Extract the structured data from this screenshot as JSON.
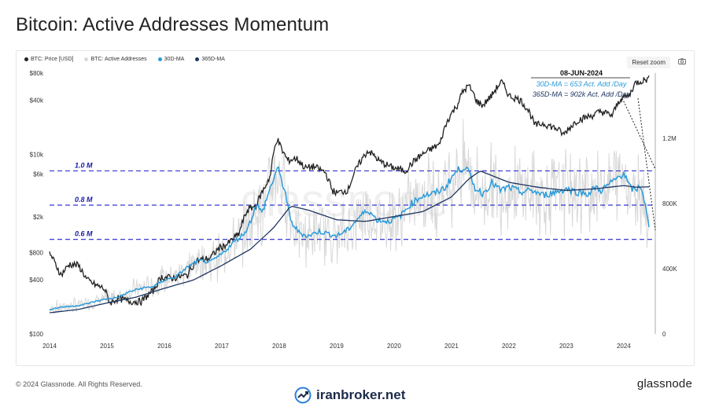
{
  "header": {
    "title": "Bitcoin: Active Addresses Momentum"
  },
  "toolbar": {
    "reset_zoom_label": "Reset zoom",
    "camera_icon": "camera-icon"
  },
  "footer": {
    "copyright": "© 2024 Glassnode. All Rights Reserved.",
    "brand": "glassnode",
    "watermark": "iranbroker.net"
  },
  "chart_data": {
    "type": "line",
    "title": "Bitcoin: Active Addresses Momentum",
    "legend_position": "top-left",
    "grid": false,
    "series": [
      {
        "name": "BTC: Price [USD]",
        "color": "#222222",
        "axis": "left",
        "x": [
          2014.0,
          2014.1,
          2014.2,
          2014.35,
          2014.5,
          2014.65,
          2014.8,
          2014.95,
          2015.05,
          2015.2,
          2015.4,
          2015.6,
          2015.8,
          2015.95,
          2016.15,
          2016.4,
          2016.55,
          2016.8,
          2016.95,
          2017.1,
          2017.3,
          2017.45,
          2017.6,
          2017.75,
          2017.85,
          2017.96,
          2018.05,
          2018.15,
          2018.3,
          2018.45,
          2018.6,
          2018.8,
          2018.92,
          2019.0,
          2019.2,
          2019.45,
          2019.55,
          2019.75,
          2019.95,
          2020.2,
          2020.4,
          2020.6,
          2020.8,
          2020.95,
          2021.1,
          2021.2,
          2021.3,
          2021.45,
          2021.55,
          2021.7,
          2021.87,
          2022.0,
          2022.2,
          2022.35,
          2022.45,
          2022.6,
          2022.85,
          2022.95,
          2023.2,
          2023.45,
          2023.6,
          2023.8,
          2023.95,
          2024.1,
          2024.2,
          2024.35,
          2024.44
        ],
        "values": [
          800,
          600,
          450,
          600,
          580,
          400,
          350,
          320,
          220,
          250,
          230,
          230,
          300,
          430,
          420,
          450,
          650,
          700,
          900,
          1000,
          1300,
          2400,
          2700,
          4300,
          5800,
          15000,
          11000,
          8500,
          9000,
          7000,
          7300,
          6300,
          4000,
          3700,
          4000,
          9000,
          11000,
          8300,
          7200,
          6500,
          9000,
          11000,
          13000,
          25000,
          35000,
          50000,
          58000,
          38000,
          35000,
          45000,
          64000,
          45000,
          40000,
          30000,
          21000,
          22000,
          19000,
          16500,
          24000,
          27000,
          30000,
          27000,
          42000,
          45000,
          62000,
          67000,
          69000
        ]
      },
      {
        "name": "BTC: Active Addresses",
        "color": "#d8d8d8",
        "axis": "right"
      },
      {
        "name": "30D-MA",
        "color": "#2b9bd8",
        "axis": "right",
        "x": [
          2014.0,
          2014.2,
          2014.4,
          2014.6,
          2014.8,
          2015.0,
          2015.2,
          2015.4,
          2015.6,
          2015.8,
          2016.0,
          2016.2,
          2016.4,
          2016.6,
          2016.8,
          2017.0,
          2017.2,
          2017.4,
          2017.5,
          2017.6,
          2017.7,
          2017.8,
          2017.9,
          2017.97,
          2018.05,
          2018.1,
          2018.2,
          2018.35,
          2018.5,
          2018.7,
          2018.9,
          2019.0,
          2019.2,
          2019.4,
          2019.55,
          2019.7,
          2019.9,
          2020.1,
          2020.3,
          2020.5,
          2020.7,
          2020.9,
          2021.0,
          2021.1,
          2021.25,
          2021.4,
          2021.55,
          2021.7,
          2021.85,
          2022.0,
          2022.2,
          2022.4,
          2022.6,
          2022.8,
          2023.0,
          2023.2,
          2023.4,
          2023.5,
          2023.6,
          2023.8,
          2024.0,
          2024.1,
          2024.2,
          2024.3,
          2024.37,
          2024.44
        ],
        "values": [
          150,
          165,
          170,
          180,
          200,
          215,
          225,
          260,
          280,
          290,
          330,
          350,
          410,
          450,
          440,
          490,
          560,
          620,
          690,
          800,
          740,
          850,
          950,
          1020,
          930,
          880,
          690,
          620,
          600,
          630,
          610,
          600,
          640,
          720,
          760,
          700,
          690,
          720,
          800,
          850,
          860,
          900,
          960,
          1000,
          1030,
          900,
          860,
          930,
          880,
          900,
          870,
          880,
          850,
          870,
          890,
          870,
          860,
          900,
          880,
          930,
          990,
          900,
          880,
          910,
          800,
          653
        ]
      },
      {
        "name": "365D-MA",
        "color": "#1e3560",
        "axis": "right",
        "x": [
          2014.0,
          2014.5,
          2015.0,
          2015.5,
          2016.0,
          2016.5,
          2017.0,
          2017.5,
          2017.9,
          2018.2,
          2018.5,
          2019.0,
          2019.5,
          2020.0,
          2020.5,
          2021.0,
          2021.3,
          2021.5,
          2022.0,
          2022.5,
          2023.0,
          2023.5,
          2024.0,
          2024.2,
          2024.44
        ],
        "values": [
          130,
          150,
          190,
          225,
          280,
          330,
          420,
          520,
          650,
          785,
          760,
          700,
          690,
          720,
          750,
          840,
          950,
          1000,
          930,
          900,
          880,
          890,
          910,
          900,
          902
        ]
      }
    ],
    "x_ticks": [
      "2014",
      "2015",
      "2016",
      "2017",
      "2018",
      "2019",
      "2020",
      "2021",
      "2022",
      "2023",
      "2024"
    ],
    "xlim": [
      2014,
      2024.55
    ],
    "y_left": {
      "scale": "log",
      "ticks": [
        "$100",
        "$400",
        "$800",
        "$2k",
        "$6k",
        "$10k",
        "$40k",
        "$80k"
      ],
      "tick_values": [
        100,
        400,
        800,
        2000,
        6000,
        10000,
        40000,
        80000
      ],
      "range": [
        100,
        80000
      ]
    },
    "y_right": {
      "scale": "linear",
      "ticks": [
        "0",
        "400K",
        "800K",
        "1.2M"
      ],
      "tick_values": [
        0,
        400,
        800,
        1200
      ],
      "range": [
        0,
        1600
      ]
    },
    "reference_lines": [
      {
        "label": "1.0 M",
        "value": 1000,
        "axis": "right"
      },
      {
        "label": "0.8 M",
        "value": 790,
        "axis": "right"
      },
      {
        "label": "0.6 M",
        "value": 580,
        "axis": "right"
      }
    ],
    "annotation": {
      "date": "08-JUN-2024",
      "line1": "30D-MA = 653 Act. Add /Day",
      "line2": "365D-MA = 902k  Act. Add /Day"
    },
    "watermark_text": "glassnode"
  }
}
